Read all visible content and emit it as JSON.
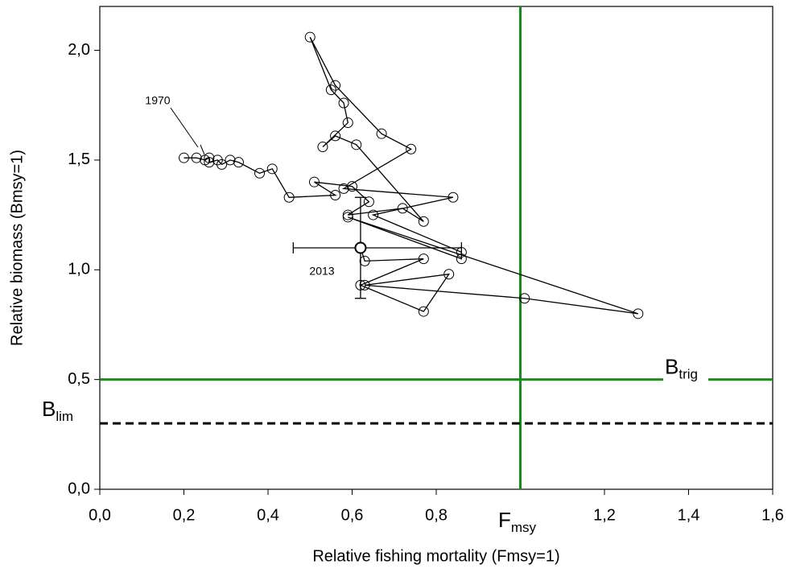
{
  "chart_data": {
    "type": "trajectory",
    "x_label": "Relative fishing mortality (Fmsy=1)",
    "y_label": "Relative biomass (Bmsy=1)",
    "xlim": [
      0,
      1.6
    ],
    "ylim": [
      0,
      2.2
    ],
    "xticks": [
      {
        "value": 0,
        "label": "0,0"
      },
      {
        "value": 0.2,
        "label": "0,2"
      },
      {
        "value": 0.4,
        "label": "0,4"
      },
      {
        "value": 0.6,
        "label": "0,6"
      },
      {
        "value": 0.8,
        "label": "0,8"
      },
      {
        "value": 1.2,
        "label": "1,2"
      },
      {
        "value": 1.4,
        "label": "1,4"
      },
      {
        "value": 1.6,
        "label": "1,6"
      }
    ],
    "yticks": [
      {
        "value": 0,
        "label": "0,0"
      },
      {
        "value": 0.5,
        "label": "0,5"
      },
      {
        "value": 1.0,
        "label": "1,0"
      },
      {
        "value": 1.5,
        "label": "1,5"
      },
      {
        "value": 2.0,
        "label": "2,0"
      }
    ],
    "series": [
      {
        "color": "#000000",
        "x": [
          0.2,
          0.23,
          0.25,
          0.26,
          0.26,
          0.28,
          0.29,
          0.31,
          0.33,
          0.38,
          0.41,
          0.45,
          0.56,
          0.51,
          0.6,
          0.64,
          0.59,
          0.72,
          0.77,
          0.61,
          0.56,
          0.53,
          0.59,
          0.58,
          0.55,
          0.5,
          0.56,
          0.67,
          0.74,
          0.58,
          0.84,
          0.65,
          0.86,
          0.86,
          0.59,
          1.28,
          1.01,
          0.63,
          0.83,
          0.77,
          0.62,
          0.77,
          0.63,
          0.62
        ],
        "y": [
          1.51,
          1.51,
          1.5,
          1.51,
          1.49,
          1.5,
          1.48,
          1.5,
          1.49,
          1.44,
          1.46,
          1.33,
          1.34,
          1.4,
          1.38,
          1.31,
          1.25,
          1.28,
          1.22,
          1.57,
          1.61,
          1.56,
          1.67,
          1.76,
          1.82,
          2.06,
          1.84,
          1.62,
          1.55,
          1.37,
          1.33,
          1.25,
          1.08,
          1.05,
          1.24,
          0.8,
          0.87,
          0.93,
          0.98,
          0.81,
          0.93,
          1.05,
          1.04,
          1.1
        ],
        "error": {
          "x": [
            0.46,
            0.86
          ],
          "y": [
            0.87,
            1.33
          ]
        }
      }
    ],
    "reference_lines": [
      {
        "axis": "x",
        "value": 1.0,
        "color": "#1a8a1a",
        "style": "solid",
        "label": {
          "text": "F",
          "sub": "msy"
        }
      },
      {
        "axis": "y",
        "value": 0.5,
        "color": "#1a8a1a",
        "style": "solid",
        "label": {
          "text": "B",
          "sub": "trig"
        }
      },
      {
        "axis": "y",
        "value": 0.3,
        "color": "#000000",
        "style": "dashed",
        "label": {
          "text": "B",
          "sub": "lim"
        }
      }
    ],
    "annotations": [
      "1970",
      "2013"
    ]
  }
}
